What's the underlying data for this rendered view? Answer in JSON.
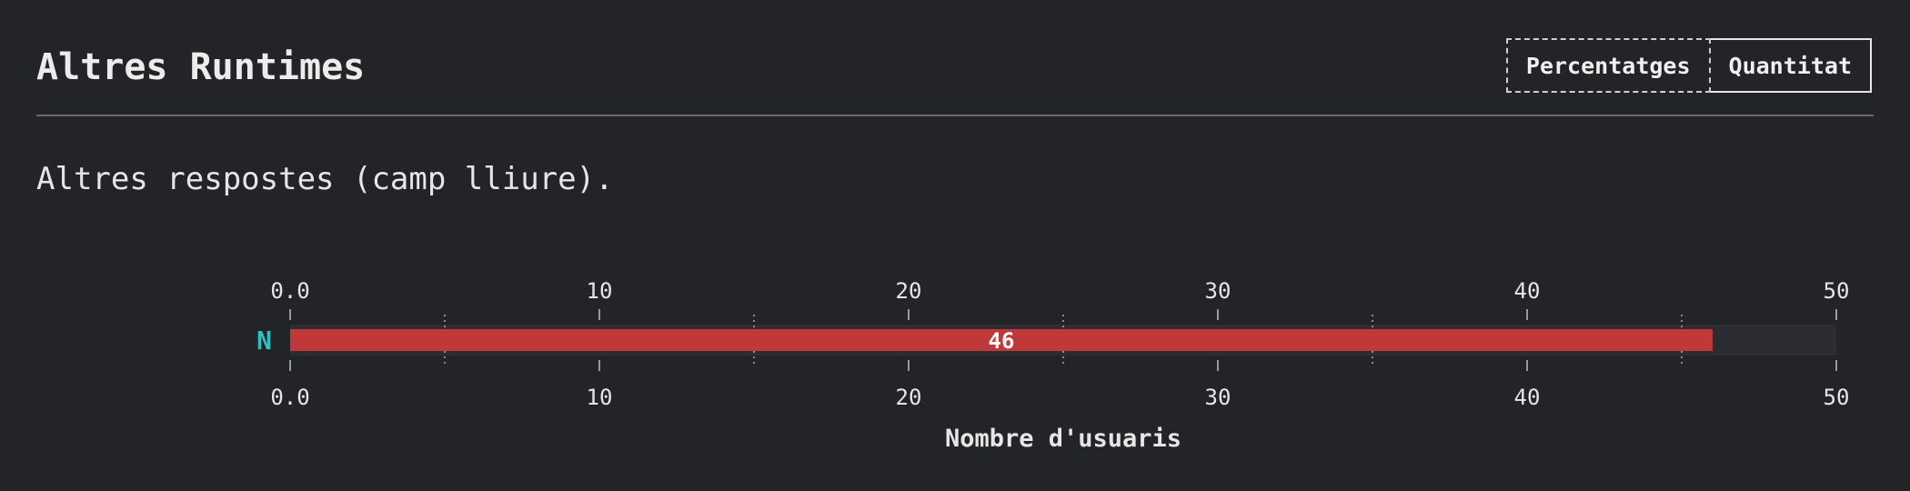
{
  "header": {
    "title": "Altres Runtimes",
    "toggle": {
      "percent_label": "Percentatges",
      "count_label": "Quantitat",
      "selected": "Quantitat"
    }
  },
  "description": "Altres respostes (camp lliure).",
  "colors": {
    "background": "#232428",
    "bar": "#c0383a",
    "track": "#2c2d32",
    "category_label": "#35c0c0"
  },
  "chart_data": {
    "type": "bar",
    "orientation": "horizontal",
    "categories": [
      "N"
    ],
    "values": [
      46
    ],
    "data_labels": [
      "46"
    ],
    "xlabel": "Nombre d'usuaris",
    "xlim": [
      0,
      50
    ],
    "major_ticks": [
      0,
      10,
      20,
      30,
      40,
      50
    ],
    "tick_labels": [
      "0.0",
      "10",
      "20",
      "30",
      "40",
      "50"
    ],
    "minor_ticks": [
      5,
      15,
      25,
      35,
      45
    ],
    "tick_labels_top_and_bottom": true
  }
}
